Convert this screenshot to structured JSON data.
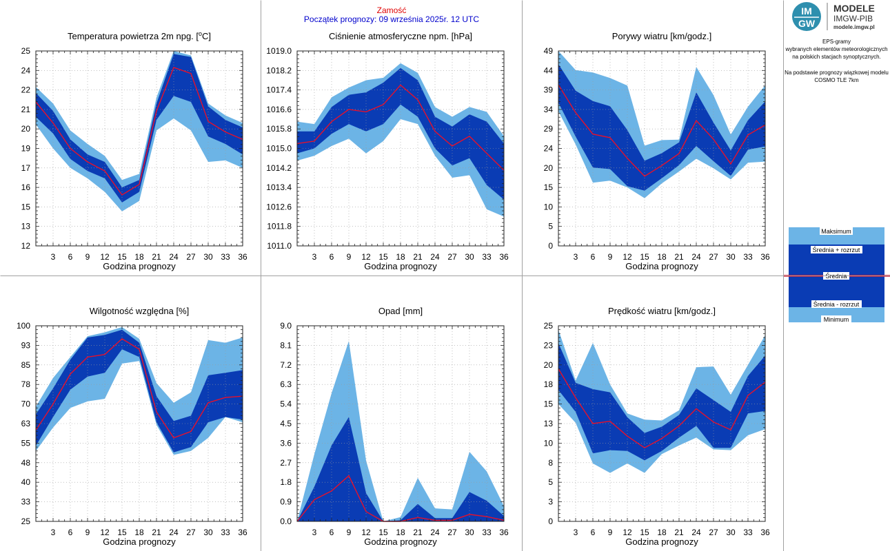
{
  "header": {
    "station": "Zamość",
    "start": "Początek prognozy: 09 września 2025r. 12 UTC"
  },
  "logo": {
    "badge_top": "IM",
    "badge_bottom": "GW",
    "title": "MODELE",
    "subtitle": "IMGW-PIB",
    "url": "modele.imgw.pl",
    "badge_color": "#2e8fae"
  },
  "notes": {
    "line1": "EPS-gramy",
    "line2": "wybranych elementów meteorologicznych",
    "line3": "na polskich stacjach  synoptycznych.",
    "line4": "Na podstawie prognozy wiązkowej modelu",
    "line5": "COSMO TLE 7km"
  },
  "legend": {
    "max": "Maksimum",
    "plus": "Średnia + rozrzut",
    "mean": "Średnia",
    "minus": "Średnia - rozrzut",
    "min": "Minimum"
  },
  "colors": {
    "outer_band": "#6cb4e6",
    "inner_band": "#0a3cb4",
    "mean_line": "#e8102a",
    "grid": "#9a9a9a"
  },
  "chart_data": [
    {
      "type": "area",
      "title": "Temperatura powietrza 2m npg. [°C]",
      "title_main": "Temperatura powietrza 2m npg. [",
      "title_sup": "o",
      "title_end": "C]",
      "xlabel": "Godzina prognozy",
      "ylabel": "",
      "x": [
        0,
        3,
        6,
        9,
        12,
        15,
        18,
        21,
        24,
        27,
        30,
        33,
        36
      ],
      "xticks": [
        "3",
        "6",
        "9",
        "12",
        "15",
        "18",
        "21",
        "24",
        "27",
        "30",
        "33",
        "36"
      ],
      "ylim": [
        12,
        25
      ],
      "yticks": [
        "12",
        "13",
        "15",
        "16",
        "17",
        "19",
        "20",
        "21",
        "22",
        "24",
        "25"
      ],
      "max": [
        22.6,
        21.5,
        19.7,
        18.8,
        18.0,
        16.4,
        16.8,
        21.9,
        25.0,
        24.7,
        21.5,
        20.7,
        20.2
      ],
      "mean_plus": [
        22.2,
        21.0,
        19.1,
        18.1,
        17.6,
        15.9,
        16.4,
        21.5,
        24.8,
        24.6,
        21.3,
        20.4,
        19.9
      ],
      "mean": [
        21.6,
        20.2,
        18.5,
        17.6,
        17.0,
        15.4,
        16.1,
        21.0,
        23.9,
        23.5,
        20.3,
        19.6,
        19.1
      ],
      "mean_minus": [
        20.6,
        19.5,
        17.8,
        17.0,
        16.5,
        14.9,
        15.6,
        20.4,
        22.0,
        21.6,
        19.3,
        18.8,
        18.1
      ],
      "min": [
        20.1,
        18.5,
        17.2,
        16.5,
        15.6,
        14.3,
        15.0,
        19.7,
        20.5,
        19.7,
        17.6,
        17.7,
        17.2
      ]
    },
    {
      "type": "area",
      "title": "Ciśnienie atmosferyczne npm. [hPa]",
      "xlabel": "Godzina prognozy",
      "ylabel": "",
      "x": [
        0,
        3,
        6,
        9,
        12,
        15,
        18,
        21,
        24,
        27,
        30,
        33,
        36
      ],
      "xticks": [
        "3",
        "6",
        "9",
        "12",
        "15",
        "18",
        "21",
        "24",
        "27",
        "30",
        "33",
        "36"
      ],
      "ylim": [
        1011.0,
        1019.0
      ],
      "yticks": [
        "1011.0",
        "1011.8",
        "1012.6",
        "1013.4",
        "1014.2",
        "1015.0",
        "1015.8",
        "1016.6",
        "1017.4",
        "1018.2",
        "1019.0"
      ],
      "max": [
        1016.1,
        1016.0,
        1017.1,
        1017.5,
        1017.8,
        1017.9,
        1018.5,
        1018.1,
        1016.7,
        1016.3,
        1016.7,
        1016.5,
        1015.5
      ],
      "mean_plus": [
        1015.7,
        1015.7,
        1016.7,
        1017.2,
        1017.3,
        1017.7,
        1018.3,
        1017.8,
        1016.3,
        1015.9,
        1016.4,
        1016.1,
        1015.2
      ],
      "mean": [
        1015.2,
        1015.3,
        1016.1,
        1016.6,
        1016.5,
        1016.8,
        1017.6,
        1017.0,
        1015.7,
        1015.1,
        1015.5,
        1014.8,
        1014.1
      ],
      "mean_minus": [
        1014.8,
        1015.0,
        1015.6,
        1016.0,
        1015.7,
        1016.0,
        1016.8,
        1016.3,
        1015.0,
        1014.3,
        1014.6,
        1013.5,
        1012.9
      ],
      "min": [
        1014.5,
        1014.7,
        1015.1,
        1015.4,
        1014.8,
        1015.3,
        1016.2,
        1016.0,
        1014.7,
        1013.8,
        1013.9,
        1012.5,
        1012.2
      ]
    },
    {
      "type": "area",
      "title": "Porywy wiatru [km/godz.]",
      "xlabel": "Godzina prognozy",
      "ylabel": "",
      "x": [
        0,
        3,
        6,
        9,
        12,
        15,
        18,
        21,
        24,
        27,
        30,
        33,
        36
      ],
      "xticks": [
        "3",
        "6",
        "9",
        "12",
        "15",
        "18",
        "21",
        "24",
        "27",
        "30",
        "33",
        "36"
      ],
      "ylim": [
        0,
        49
      ],
      "yticks": [
        "0",
        "5",
        "10",
        "15",
        "20",
        "24",
        "29",
        "34",
        "39",
        "44",
        "49"
      ],
      "max": [
        49.0,
        44.2,
        43.6,
        42.2,
        40.3,
        25.2,
        26.6,
        26.7,
        45.0,
        37.9,
        28.0,
        35.0,
        40.4
      ],
      "mean_plus": [
        45.7,
        39.0,
        36.4,
        35.1,
        29.1,
        21.4,
        23.3,
        26.0,
        38.6,
        31.0,
        24.0,
        31.6,
        36.3
      ],
      "mean": [
        40.5,
        33.5,
        28.1,
        27.2,
        22.0,
        17.5,
        20.2,
        23.2,
        31.5,
        26.8,
        20.6,
        27.9,
        30.4
      ],
      "mean_minus": [
        36.0,
        27.5,
        19.7,
        19.3,
        15.0,
        13.9,
        17.0,
        20.3,
        25.1,
        21.3,
        17.6,
        24.2,
        25.0
      ],
      "min": [
        33.8,
        25.5,
        15.9,
        16.4,
        14.7,
        12.0,
        15.7,
        18.7,
        21.9,
        19.5,
        16.7,
        20.9,
        21.2
      ]
    },
    {
      "type": "area",
      "title": "Wilgotność względna [%]",
      "xlabel": "Godzina prognozy",
      "ylabel": "",
      "x": [
        0,
        3,
        6,
        9,
        12,
        15,
        18,
        21,
        24,
        27,
        30,
        33,
        36
      ],
      "xticks": [
        "3",
        "6",
        "9",
        "12",
        "15",
        "18",
        "21",
        "24",
        "27",
        "30",
        "33",
        "36"
      ],
      "ylim": [
        25,
        100
      ],
      "yticks": [
        "25",
        "33",
        "40",
        "48",
        "55",
        "63",
        "70",
        "78",
        "85",
        "93",
        "100"
      ],
      "max": [
        69.0,
        80.0,
        88.0,
        96.0,
        97.5,
        99.5,
        95.0,
        78.0,
        70.5,
        74.5,
        94.5,
        93.5,
        95.5
      ],
      "mean_plus": [
        66.0,
        76.0,
        87.0,
        95.5,
        96.5,
        98.5,
        93.5,
        73.0,
        63.5,
        65.5,
        81.0,
        82.0,
        83.0
      ],
      "mean": [
        60.0,
        70.0,
        81.5,
        88.0,
        89.0,
        95.0,
        91.0,
        67.0,
        57.0,
        59.5,
        70.5,
        72.5,
        73.0
      ],
      "mean_minus": [
        54.0,
        65.0,
        75.5,
        80.5,
        82.0,
        91.0,
        88.0,
        63.0,
        51.5,
        53.5,
        63.0,
        65.0,
        64.0
      ],
      "min": [
        52.0,
        61.0,
        68.5,
        71.0,
        72.0,
        85.5,
        86.5,
        62.0,
        50.5,
        52.0,
        57.0,
        65.0,
        63.0
      ]
    },
    {
      "type": "area",
      "title": "Opad [mm]",
      "xlabel": "Godzina prognozy",
      "ylabel": "",
      "x": [
        0,
        3,
        6,
        9,
        12,
        15,
        18,
        21,
        24,
        27,
        30,
        33,
        36
      ],
      "xticks": [
        "3",
        "6",
        "9",
        "12",
        "15",
        "18",
        "21",
        "24",
        "27",
        "30",
        "33",
        "36"
      ],
      "ylim": [
        0.0,
        9.0
      ],
      "yticks": [
        "0.0",
        "0.9",
        "1.8",
        "2.7",
        "3.6",
        "4.5",
        "5.4",
        "6.3",
        "7.2",
        "8.1",
        "9.0"
      ],
      "max": [
        0.0,
        3.1,
        5.9,
        8.3,
        2.8,
        0.0,
        0.2,
        2.0,
        0.6,
        0.55,
        3.2,
        2.3,
        0.7
      ],
      "mean_plus": [
        0.0,
        1.6,
        3.5,
        4.8,
        1.3,
        0.0,
        0.05,
        0.8,
        0.15,
        0.15,
        1.35,
        0.95,
        0.25
      ],
      "mean": [
        0.0,
        1.0,
        1.4,
        2.1,
        0.45,
        0.0,
        0.0,
        0.18,
        0.05,
        0.05,
        0.32,
        0.22,
        0.05
      ],
      "mean_minus": [
        0.0,
        0.0,
        0.0,
        0.0,
        0.0,
        0.0,
        0.0,
        0.0,
        0.0,
        0.0,
        0.0,
        0.0,
        0.0
      ],
      "min": [
        0.0,
        0.0,
        0.0,
        0.0,
        0.0,
        0.0,
        0.0,
        0.0,
        0.0,
        0.0,
        0.0,
        0.0,
        0.0
      ]
    },
    {
      "type": "area",
      "title": "Prędkość wiatru [km/godz.]",
      "xlabel": "Godzina prognozy",
      "ylabel": "",
      "x": [
        0,
        3,
        6,
        9,
        12,
        15,
        18,
        21,
        24,
        27,
        30,
        33,
        36
      ],
      "xticks": [
        "3",
        "6",
        "9",
        "12",
        "15",
        "18",
        "21",
        "24",
        "27",
        "30",
        "33",
        "36"
      ],
      "ylim": [
        0,
        25
      ],
      "yticks": [
        "0",
        "3",
        "5",
        "8",
        "10",
        "13",
        "15",
        "18",
        "20",
        "23",
        "25"
      ],
      "max": [
        24.5,
        18.0,
        22.8,
        17.5,
        13.8,
        13.0,
        12.9,
        14.2,
        19.7,
        19.8,
        16.2,
        20.0,
        23.8
      ],
      "mean_plus": [
        22.8,
        17.7,
        16.9,
        16.5,
        13.3,
        11.3,
        12.1,
        13.6,
        17.0,
        15.5,
        14.0,
        18.6,
        21.2
      ],
      "mean": [
        19.5,
        15.8,
        12.5,
        12.8,
        10.9,
        9.4,
        10.6,
        12.2,
        14.4,
        12.7,
        11.7,
        16.1,
        17.8
      ],
      "mean_minus": [
        16.8,
        14.0,
        8.7,
        9.1,
        9.0,
        7.8,
        9.0,
        10.7,
        12.2,
        9.4,
        9.4,
        13.8,
        14.1
      ],
      "min": [
        15.0,
        12.6,
        7.4,
        6.2,
        7.4,
        6.2,
        8.6,
        9.7,
        10.7,
        9.2,
        9.1,
        11.0,
        11.8
      ]
    }
  ]
}
